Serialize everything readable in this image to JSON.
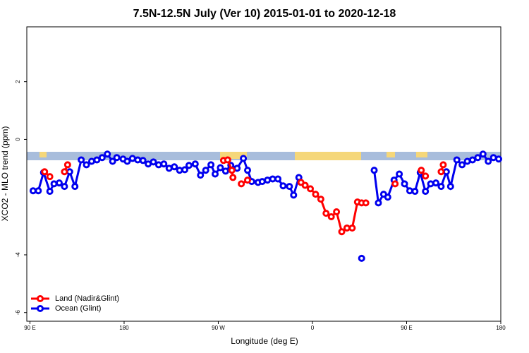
{
  "chart_data": {
    "type": "line",
    "title": "7.5N-12.5N July (Ver 10)   2015-01-01 to 2020-12-18",
    "x_label": "Longitude (deg E)",
    "y_label": "XCO2 - MLO trend (ppm)",
    "xlim": [
      87,
      540
    ],
    "ylim": [
      -6.3,
      3.9
    ],
    "xticks": [
      {
        "value": 90,
        "label": "90 E"
      },
      180,
      {
        "value": 270,
        "label": "90 W"
      },
      {
        "value": 360,
        "label": "0"
      },
      {
        "value": 450,
        "label": "90 E"
      },
      {
        "value": 540,
        "label": "180"
      }
    ],
    "yticks": [
      -6,
      -4,
      0,
      2
    ],
    "legend": "bottom-left",
    "series": [
      {
        "name": "Land (Nadir&Glint)",
        "color": "#ff0000",
        "x": [
          104,
          109,
          116,
          123,
          126,
          200,
          275,
          279,
          283,
          284,
          287,
          292,
          298,
          320,
          349,
          353,
          358,
          363,
          368,
          373,
          378,
          383,
          388,
          393,
          398,
          403,
          407,
          411,
          430,
          439,
          450,
          464,
          468,
          475,
          483,
          485
        ],
        "values": [
          -1.12,
          -1.29,
          null,
          -1.12,
          -0.88,
          null,
          -0.73,
          -0.71,
          -1.07,
          -1.32,
          null,
          -1.54,
          -1.41,
          null,
          -1.49,
          -1.59,
          -1.71,
          -1.9,
          -2.07,
          -2.56,
          -2.68,
          -2.51,
          -3.2,
          -3.07,
          -3.07,
          -2.17,
          -2.2,
          -2.2,
          null,
          -1.54,
          null,
          -1.07,
          -1.27,
          null,
          -1.12,
          -0.88
        ]
      },
      {
        "name": "Ocean (Glint)",
        "color": "#0000ee",
        "x": [
          93,
          98,
          103,
          109,
          113,
          118,
          123,
          128,
          133,
          139,
          144,
          149,
          154,
          159,
          164,
          169,
          173,
          179,
          183,
          188,
          193,
          198,
          203,
          208,
          213,
          218,
          223,
          228,
          233,
          238,
          242,
          248,
          253,
          258,
          263,
          267,
          272,
          277,
          282,
          288,
          294,
          298,
          302,
          308,
          312,
          317,
          322,
          327,
          332,
          338,
          342,
          347,
          377,
          407,
          413,
          419,
          423,
          428,
          432,
          438,
          443,
          448,
          453,
          458,
          463,
          468,
          473,
          478,
          483,
          488,
          492,
          498,
          503,
          508,
          513,
          518,
          523,
          528,
          533,
          538
        ],
        "values": [
          -1.78,
          -1.78,
          -1.15,
          -1.8,
          -1.54,
          -1.51,
          -1.63,
          -1.12,
          -1.63,
          -0.71,
          -0.88,
          -0.76,
          -0.71,
          -0.63,
          -0.51,
          -0.76,
          -0.63,
          -0.68,
          -0.76,
          -0.66,
          -0.71,
          -0.73,
          -0.85,
          -0.78,
          -0.88,
          -0.85,
          -1.0,
          -0.95,
          -1.07,
          -1.05,
          -0.9,
          -0.85,
          -1.24,
          -1.07,
          -0.88,
          -1.2,
          -0.98,
          -1.1,
          -0.9,
          -1.0,
          -0.66,
          -1.07,
          -1.46,
          -1.49,
          -1.46,
          -1.41,
          -1.37,
          -1.37,
          -1.61,
          -1.63,
          -1.93,
          -1.32,
          null,
          -4.12,
          null,
          -1.07,
          -2.2,
          -1.9,
          -2.0,
          -1.41,
          -1.2,
          -1.54,
          -1.78,
          -1.8,
          -1.15,
          -1.8,
          -1.54,
          -1.51,
          -1.63,
          -1.12,
          -1.63,
          -0.71,
          -0.88,
          -0.76,
          -0.71,
          -0.63,
          -0.51,
          -0.76,
          -0.63,
          -0.68
        ]
      }
    ]
  }
}
